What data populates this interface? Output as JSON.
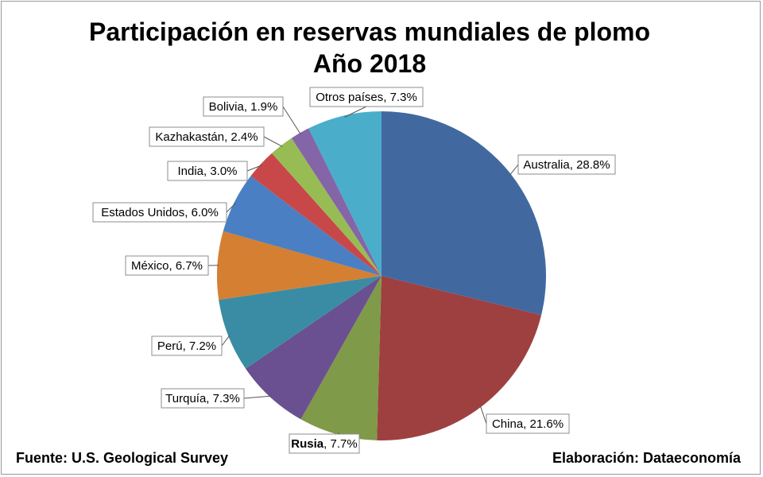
{
  "chart_data": {
    "type": "pie",
    "title": "Participación en reservas mundiales de plomo",
    "subtitle": "Año 2018",
    "start": "12 o'clock",
    "direction": "clockwise",
    "slices": [
      {
        "name": "Australia",
        "value": 28.8,
        "label": "Australia, 28.8%",
        "color": "#4169a0"
      },
      {
        "name": "China",
        "value": 21.6,
        "label": "China, 21.6%",
        "color": "#9e4040"
      },
      {
        "name": "Rusia",
        "value": 7.7,
        "label": "Rusia, 7.7%",
        "color": "#7f9a48",
        "bold_name": true
      },
      {
        "name": "Turquía",
        "value": 7.3,
        "label": "Turquía, 7.3%",
        "color": "#6a5090"
      },
      {
        "name": "Perú",
        "value": 7.2,
        "label": "Perú, 7.2%",
        "color": "#3a8ca4"
      },
      {
        "name": "México",
        "value": 6.7,
        "label": "México, 6.7%",
        "color": "#d57f33"
      },
      {
        "name": "Estados Unidos",
        "value": 6.0,
        "label": "Estados Unidos, 6.0%",
        "color": "#4a7fc4"
      },
      {
        "name": "India",
        "value": 3.0,
        "label": "India, 3.0%",
        "color": "#c8484a"
      },
      {
        "name": "Kazhakastán",
        "value": 2.4,
        "label": "Kazhakastán, 2.4%",
        "color": "#98bc54"
      },
      {
        "name": "Bolivia",
        "value": 1.9,
        "label": "Bolivia, 1.9%",
        "color": "#8465a8"
      },
      {
        "name": "Otros países",
        "value": 7.3,
        "label": "Otros países, 7.3%",
        "color": "#4aaecb"
      }
    ]
  },
  "footer": {
    "source": "Fuente: U.S. Geological Survey",
    "credit": "Elaboración: Dataeconomía"
  }
}
